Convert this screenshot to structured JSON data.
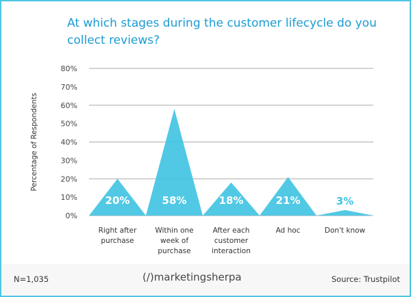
{
  "title": "At which stages during the customer lifecycle do you collect reviews?",
  "footer": {
    "sample": "N=1,035",
    "logo": "marketingsherpa",
    "source": "Source: Trustpilot"
  },
  "colors": {
    "accent": "#3ec3e2",
    "title": "#1b9bd1",
    "border": "#4cc6e2"
  },
  "chart_data": {
    "type": "area",
    "style": "triangles",
    "title": "At which stages during the customer lifecycle do you collect reviews?",
    "ylabel": "Percentage of Respondents",
    "ylim": [
      0,
      80
    ],
    "yticks": [
      "0%",
      "10%",
      "20%",
      "30%",
      "40%",
      "50%",
      "60%",
      "70%",
      "80%"
    ],
    "grid": true,
    "categories": [
      [
        "Right after",
        "purchase"
      ],
      [
        "Within one",
        "week of",
        "purchase"
      ],
      [
        "After each",
        "customer",
        "interaction"
      ],
      [
        "Ad hoc"
      ],
      [
        "Don't know"
      ]
    ],
    "values": [
      20,
      58,
      18,
      21,
      3
    ],
    "labels": [
      "20%",
      "58%",
      "18%",
      "21%",
      "3%"
    ]
  }
}
